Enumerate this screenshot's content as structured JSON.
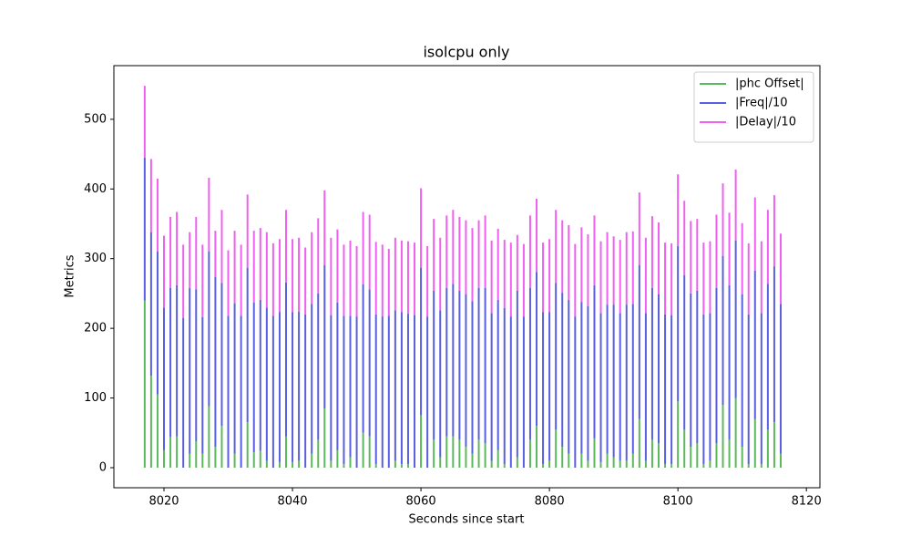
{
  "chart_data": {
    "type": "stacked_stem",
    "title": "isolcpu only",
    "xlabel": "Seconds since start",
    "ylabel": "Metrics",
    "x": [
      8017,
      8018,
      8019,
      8020,
      8021,
      8022,
      8023,
      8024,
      8025,
      8026,
      8027,
      8028,
      8029,
      8030,
      8031,
      8032,
      8033,
      8034,
      8035,
      8036,
      8037,
      8038,
      8039,
      8040,
      8041,
      8042,
      8043,
      8044,
      8045,
      8046,
      8047,
      8048,
      8049,
      8050,
      8051,
      8052,
      8053,
      8054,
      8055,
      8056,
      8057,
      8058,
      8059,
      8060,
      8061,
      8062,
      8063,
      8064,
      8065,
      8066,
      8067,
      8068,
      8069,
      8070,
      8071,
      8072,
      8073,
      8074,
      8075,
      8076,
      8077,
      8078,
      8079,
      8080,
      8081,
      8082,
      8083,
      8084,
      8085,
      8086,
      8087,
      8088,
      8089,
      8090,
      8091,
      8092,
      8093,
      8094,
      8095,
      8096,
      8097,
      8098,
      8099,
      8100,
      8101,
      8102,
      8103,
      8104,
      8105,
      8106,
      8107,
      8108,
      8109,
      8110,
      8111,
      8112,
      8113,
      8114,
      8115,
      8116
    ],
    "series": [
      {
        "name": "|phc Offset|",
        "color": "#5cb85c",
        "values": [
          240,
          132,
          105,
          25,
          44,
          45,
          0,
          20,
          38,
          20,
          88,
          30,
          60,
          0,
          20,
          0,
          65,
          22,
          24,
          10,
          0,
          8,
          45,
          8,
          10,
          0,
          20,
          40,
          85,
          10,
          25,
          5,
          15,
          0,
          50,
          45,
          5,
          0,
          0,
          10,
          5,
          5,
          0,
          75,
          0,
          40,
          15,
          45,
          45,
          40,
          30,
          20,
          40,
          35,
          10,
          25,
          5,
          0,
          15,
          0,
          40,
          60,
          5,
          10,
          55,
          30,
          20,
          0,
          20,
          10,
          42,
          8,
          20,
          15,
          10,
          10,
          20,
          70,
          10,
          40,
          35,
          5,
          5,
          95,
          55,
          30,
          35,
          5,
          10,
          35,
          90,
          40,
          100,
          30,
          5,
          70,
          5,
          55,
          65,
          20
        ]
      },
      {
        "name": "|Freq|/10",
        "color": "#5a5ee0",
        "values": [
          205,
          206,
          205,
          205,
          214,
          217,
          215,
          238,
          218,
          196,
          222,
          244,
          205,
          218,
          216,
          218,
          222,
          215,
          217,
          220,
          218,
          215,
          221,
          215,
          214,
          220,
          215,
          210,
          206,
          209,
          212,
          213,
          203,
          217,
          213,
          211,
          215,
          217,
          218,
          216,
          218,
          216,
          219,
          212,
          217,
          214,
          211,
          213,
          219,
          214,
          219,
          219,
          218,
          223,
          212,
          216,
          224,
          217,
          239,
          217,
          218,
          221,
          218,
          213,
          210,
          221,
          221,
          217,
          218,
          222,
          220,
          214,
          214,
          219,
          212,
          224,
          215,
          221,
          212,
          218,
          214,
          215,
          214,
          223,
          221,
          220,
          219,
          215,
          212,
          223,
          214,
          222,
          226,
          219,
          215,
          213,
          217,
          209,
          224,
          215
        ]
      },
      {
        "name": "|Delay|/10",
        "color": "#f060f0",
        "values": [
          103,
          105,
          105,
          103,
          102,
          105,
          105,
          80,
          104,
          104,
          106,
          66,
          105,
          94,
          104,
          102,
          105,
          103,
          103,
          108,
          104,
          105,
          104,
          105,
          106,
          96,
          103,
          108,
          107,
          111,
          105,
          102,
          108,
          101,
          104,
          107,
          104,
          103,
          96,
          104,
          103,
          104,
          104,
          114,
          101,
          103,
          104,
          104,
          106,
          106,
          106,
          105,
          97,
          104,
          104,
          102,
          98,
          106,
          80,
          104,
          104,
          105,
          100,
          105,
          105,
          104,
          107,
          104,
          107,
          103,
          100,
          103,
          104,
          98,
          105,
          104,
          104,
          104,
          108,
          103,
          103,
          103,
          103,
          103,
          107,
          104,
          103,
          103,
          103,
          105,
          104,
          104,
          102,
          102,
          102,
          105,
          103,
          106,
          102,
          101
        ]
      }
    ],
    "xlim": [
      8012.2,
      8122.1
    ],
    "xticks": [
      8020,
      8040,
      8060,
      8080,
      8100,
      8120
    ],
    "ylim": [
      -28.8,
      577
    ],
    "yticks": [
      0,
      100,
      200,
      300,
      400,
      500
    ],
    "legend": "upper right",
    "grid": false
  }
}
